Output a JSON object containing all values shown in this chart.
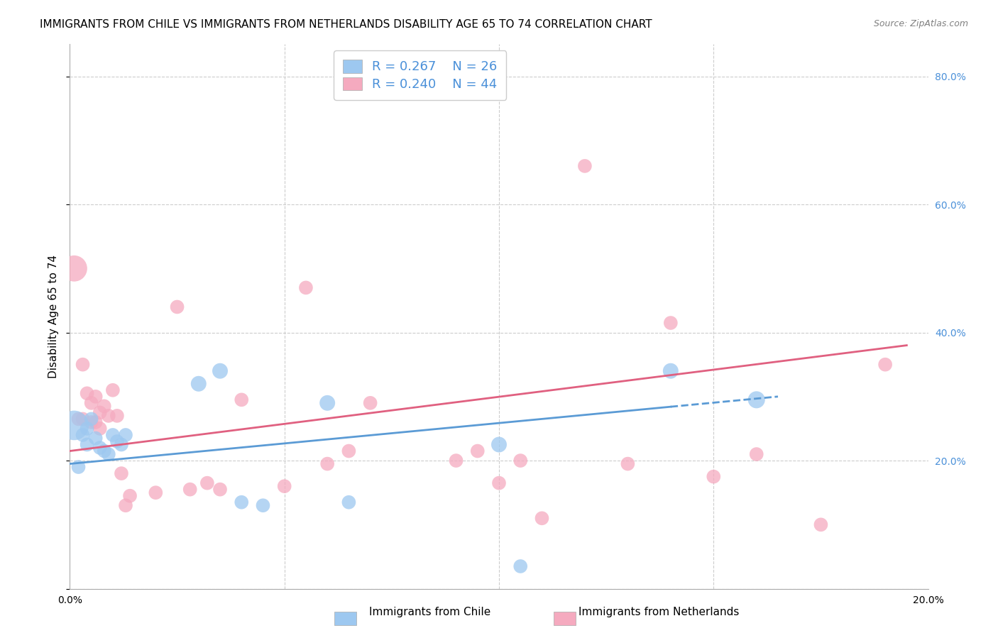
{
  "title": "IMMIGRANTS FROM CHILE VS IMMIGRANTS FROM NETHERLANDS DISABILITY AGE 65 TO 74 CORRELATION CHART",
  "source": "Source: ZipAtlas.com",
  "ylabel": "Disability Age 65 to 74",
  "xlabel": "",
  "xlim": [
    0.0,
    0.2
  ],
  "ylim": [
    0.0,
    0.85
  ],
  "xticks": [
    0.0,
    0.05,
    0.1,
    0.15,
    0.2
  ],
  "yticks": [
    0.0,
    0.2,
    0.4,
    0.6,
    0.8
  ],
  "ytick_labels": [
    "",
    "20.0%",
    "40.0%",
    "60.0%",
    "80.0%"
  ],
  "xtick_labels": [
    "0.0%",
    "",
    "",
    "",
    "20.0%"
  ],
  "chile_color": "#9DC8F0",
  "chile_color_dark": "#5B9BD5",
  "netherlands_color": "#F5AABF",
  "netherlands_color_dark": "#E06080",
  "chile_R": 0.267,
  "chile_N": 26,
  "netherlands_R": 0.24,
  "netherlands_N": 44,
  "chile_scatter_x": [
    0.001,
    0.002,
    0.003,
    0.004,
    0.004,
    0.005,
    0.006,
    0.007,
    0.008,
    0.009,
    0.01,
    0.011,
    0.012,
    0.013,
    0.03,
    0.035,
    0.04,
    0.045,
    0.06,
    0.065,
    0.1,
    0.105,
    0.14,
    0.16
  ],
  "chile_scatter_y": [
    0.255,
    0.19,
    0.24,
    0.25,
    0.225,
    0.265,
    0.235,
    0.22,
    0.215,
    0.21,
    0.24,
    0.23,
    0.225,
    0.24,
    0.32,
    0.34,
    0.135,
    0.13,
    0.29,
    0.135,
    0.225,
    0.035,
    0.34,
    0.295
  ],
  "chile_scatter_size": [
    900,
    200,
    200,
    200,
    200,
    200,
    200,
    200,
    200,
    200,
    200,
    200,
    200,
    200,
    250,
    250,
    200,
    200,
    250,
    200,
    250,
    200,
    250,
    300
  ],
  "netherlands_scatter_x": [
    0.001,
    0.002,
    0.003,
    0.003,
    0.004,
    0.005,
    0.005,
    0.006,
    0.006,
    0.007,
    0.007,
    0.008,
    0.009,
    0.01,
    0.011,
    0.012,
    0.013,
    0.014,
    0.02,
    0.025,
    0.028,
    0.032,
    0.035,
    0.04,
    0.05,
    0.055,
    0.06,
    0.065,
    0.07,
    0.09,
    0.095,
    0.1,
    0.105,
    0.11,
    0.12,
    0.13,
    0.14,
    0.15,
    0.16,
    0.175,
    0.19
  ],
  "netherlands_scatter_y": [
    0.5,
    0.265,
    0.265,
    0.35,
    0.305,
    0.26,
    0.29,
    0.26,
    0.3,
    0.275,
    0.25,
    0.285,
    0.27,
    0.31,
    0.27,
    0.18,
    0.13,
    0.145,
    0.15,
    0.44,
    0.155,
    0.165,
    0.155,
    0.295,
    0.16,
    0.47,
    0.195,
    0.215,
    0.29,
    0.2,
    0.215,
    0.165,
    0.2,
    0.11,
    0.66,
    0.195,
    0.415,
    0.175,
    0.21,
    0.1,
    0.35
  ],
  "netherlands_scatter_size": [
    700,
    200,
    200,
    200,
    200,
    200,
    200,
    200,
    200,
    200,
    200,
    200,
    200,
    200,
    200,
    200,
    200,
    200,
    200,
    200,
    200,
    200,
    200,
    200,
    200,
    200,
    200,
    200,
    200,
    200,
    200,
    200,
    200,
    200,
    200,
    200,
    200,
    200,
    200,
    200,
    200
  ],
  "chile_trend_x": [
    0.0,
    0.165
  ],
  "chile_trend_y": [
    0.195,
    0.3
  ],
  "chile_trend_solid_end": 0.14,
  "netherlands_trend_x": [
    0.0,
    0.195
  ],
  "netherlands_trend_y": [
    0.215,
    0.38
  ],
  "background_color": "#ffffff",
  "grid_color": "#cccccc",
  "right_axis_color": "#4A90D9",
  "title_fontsize": 11,
  "axis_label_fontsize": 11,
  "tick_fontsize": 10,
  "legend_fontsize": 13
}
